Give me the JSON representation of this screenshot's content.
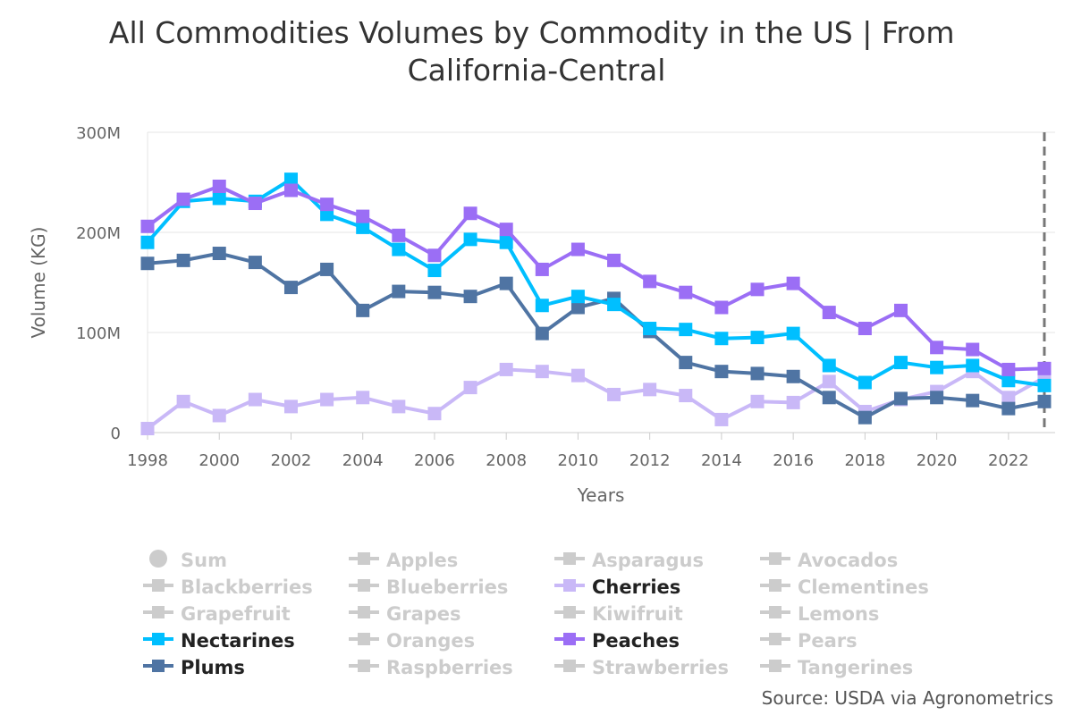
{
  "chart_data": {
    "type": "line",
    "title_lines": [
      "All Commodities Volumes by Commodity in the US | From",
      "California-Central"
    ],
    "xlabel": "Years",
    "ylabel": "Volume (KG)",
    "ylim": [
      0,
      300
    ],
    "yticks": [
      0,
      100,
      200,
      300
    ],
    "ytick_labels": [
      "0",
      "100M",
      "200M",
      "300M"
    ],
    "x": [
      1998,
      1999,
      2000,
      2001,
      2002,
      2003,
      2004,
      2005,
      2006,
      2007,
      2008,
      2009,
      2010,
      2011,
      2012,
      2013,
      2014,
      2015,
      2016,
      2017,
      2018,
      2019,
      2020,
      2021,
      2022,
      2023
    ],
    "xlim": [
      1998,
      2023.3
    ],
    "xticks": [
      1998,
      2000,
      2002,
      2004,
      2006,
      2008,
      2010,
      2012,
      2014,
      2016,
      2018,
      2020,
      2022
    ],
    "xtick_labels": [
      "1998",
      "2000",
      "2002",
      "2004",
      "2006",
      "2008",
      "2010",
      "2012",
      "2014",
      "2016",
      "2018",
      "2020",
      "2022"
    ],
    "grid": true,
    "series": [
      {
        "name": "Cherries",
        "color": "#c9b8f7",
        "values": [
          4,
          31,
          17,
          33,
          26,
          33,
          35,
          26,
          19,
          45,
          63,
          61,
          57,
          38,
          43,
          37,
          13,
          31,
          30,
          51,
          21,
          33,
          41,
          61,
          35,
          55
        ]
      },
      {
        "name": "Plums",
        "color": "#4f74a3",
        "values": [
          169,
          172,
          179,
          170,
          145,
          163,
          122,
          141,
          140,
          136,
          149,
          99,
          125,
          134,
          101,
          70,
          61,
          59,
          56,
          35,
          15,
          34,
          35,
          32,
          24,
          31
        ]
      },
      {
        "name": "Nectarines",
        "color": "#00bfff",
        "values": [
          190,
          231,
          234,
          231,
          253,
          218,
          205,
          183,
          162,
          193,
          190,
          127,
          136,
          128,
          104,
          103,
          94,
          95,
          99,
          67,
          50,
          70,
          65,
          67,
          52,
          47
        ]
      },
      {
        "name": "Peaches",
        "color": "#9b6ef5",
        "values": [
          206,
          233,
          246,
          229,
          242,
          228,
          216,
          197,
          177,
          219,
          203,
          163,
          183,
          172,
          151,
          140,
          125,
          143,
          149,
          120,
          104,
          122,
          85,
          83,
          63,
          64
        ]
      }
    ],
    "legend": {
      "placement": "bottom",
      "items": [
        {
          "label": "Sum",
          "active": false,
          "marker": "circle"
        },
        {
          "label": "Apples",
          "active": false
        },
        {
          "label": "Asparagus",
          "active": false
        },
        {
          "label": "Avocados",
          "active": false
        },
        {
          "label": "Blackberries",
          "active": false
        },
        {
          "label": "Blueberries",
          "active": false
        },
        {
          "label": "Cherries",
          "active": true,
          "color": "#c9b8f7"
        },
        {
          "label": "Clementines",
          "active": false
        },
        {
          "label": "Grapefruit",
          "active": false
        },
        {
          "label": "Grapes",
          "active": false
        },
        {
          "label": "Kiwifruit",
          "active": false
        },
        {
          "label": "Lemons",
          "active": false
        },
        {
          "label": "Nectarines",
          "active": true,
          "color": "#00bfff"
        },
        {
          "label": "Oranges",
          "active": false
        },
        {
          "label": "Peaches",
          "active": true,
          "color": "#9b6ef5"
        },
        {
          "label": "Pears",
          "active": false
        },
        {
          "label": "Plums",
          "active": true,
          "color": "#4f74a3"
        },
        {
          "label": "Raspberries",
          "active": false
        },
        {
          "label": "Strawberries",
          "active": false
        },
        {
          "label": "Tangerines",
          "active": false
        }
      ],
      "inactive_color": "#cccccc"
    },
    "source": "Source: USDA via Agronometrics"
  }
}
